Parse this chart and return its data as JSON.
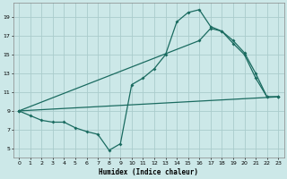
{
  "xlabel": "Humidex (Indice chaleur)",
  "bg_color": "#cce8e8",
  "grid_color": "#aacccc",
  "line_color": "#1a6b60",
  "xlim": [
    -0.5,
    23.5
  ],
  "ylim": [
    4.0,
    20.5
  ],
  "xticks": [
    0,
    1,
    2,
    3,
    4,
    5,
    6,
    7,
    8,
    9,
    10,
    11,
    12,
    13,
    14,
    15,
    16,
    17,
    18,
    19,
    20,
    21,
    22,
    23
  ],
  "yticks": [
    5,
    7,
    9,
    11,
    13,
    15,
    17,
    19
  ],
  "line1_x": [
    0,
    1,
    2,
    3,
    4,
    5,
    6,
    7,
    8,
    9,
    10,
    11,
    12,
    13,
    14,
    15,
    16,
    17,
    18,
    19,
    20,
    21,
    22,
    23
  ],
  "line1_y": [
    9.0,
    8.5,
    8.0,
    7.8,
    7.8,
    7.2,
    6.8,
    6.5,
    4.8,
    5.5,
    11.8,
    12.5,
    13.5,
    15.0,
    18.5,
    19.5,
    19.8,
    18.0,
    17.5,
    16.5,
    15.2,
    13.0,
    10.5,
    10.5
  ],
  "line2_x": [
    0,
    16,
    17,
    18,
    19,
    20,
    21,
    22,
    23
  ],
  "line2_y": [
    9.0,
    16.5,
    17.8,
    17.5,
    16.2,
    15.0,
    12.5,
    10.5,
    10.5
  ],
  "line3_x": [
    0,
    23
  ],
  "line3_y": [
    9.0,
    10.5
  ],
  "figsize": [
    3.2,
    2.0
  ],
  "dpi": 100
}
